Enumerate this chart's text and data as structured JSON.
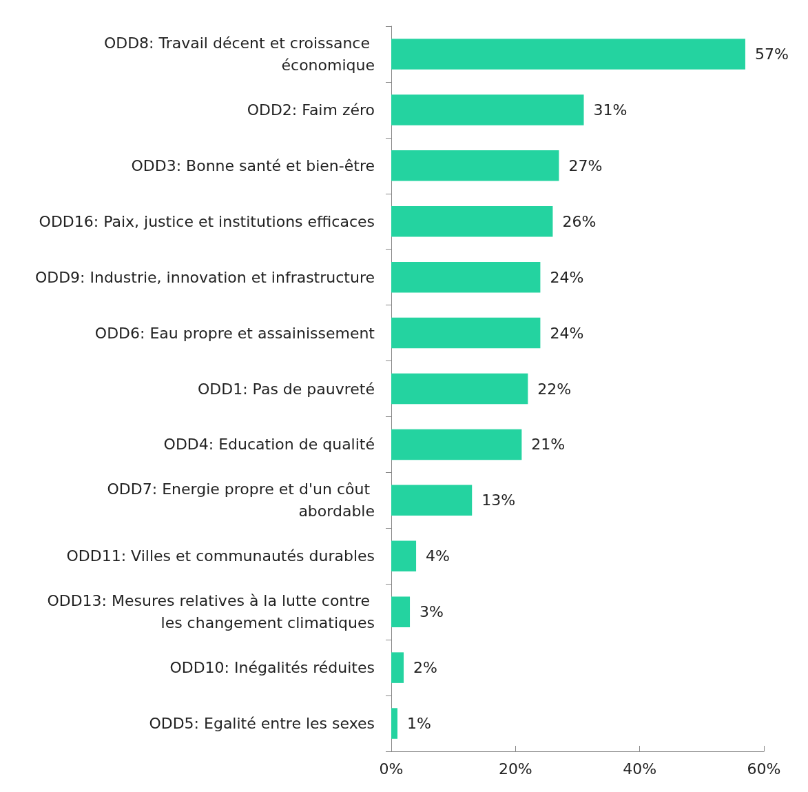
{
  "chart_data": {
    "type": "bar",
    "orientation": "horizontal",
    "categories": [
      "ODD8: Travail décent et croissance économique",
      "ODD2: Faim zéro",
      "ODD3: Bonne santé et bien-être",
      "ODD16: Paix, justice et institutions efficaces",
      "ODD9: Industrie, innovation et infrastructure",
      "ODD6: Eau propre et assainissement",
      "ODD1: Pas de pauvreté",
      "ODD4: Education de qualité",
      "ODD7: Energie propre et d'un côut abordable",
      "ODD11: Villes et communautés durables",
      "ODD13: Mesures relatives à la lutte contre les changement climatiques",
      "ODD10: Inégalités réduites",
      "ODD5: Egalité entre les sexes"
    ],
    "values": [
      57,
      31,
      27,
      26,
      24,
      24,
      22,
      21,
      13,
      4,
      3,
      2,
      1
    ],
    "value_labels": [
      "57%",
      "31%",
      "27%",
      "26%",
      "24%",
      "24%",
      "22%",
      "21%",
      "13%",
      "4%",
      "3%",
      "2%",
      "1%"
    ],
    "color": "#24d3a0",
    "xlim": [
      0,
      60
    ],
    "xticks": [
      {
        "value": 0,
        "label": "0%"
      },
      {
        "value": 20,
        "label": "20%"
      },
      {
        "value": 40,
        "label": "40%"
      },
      {
        "value": 60,
        "label": "60%"
      }
    ],
    "grid": false
  }
}
